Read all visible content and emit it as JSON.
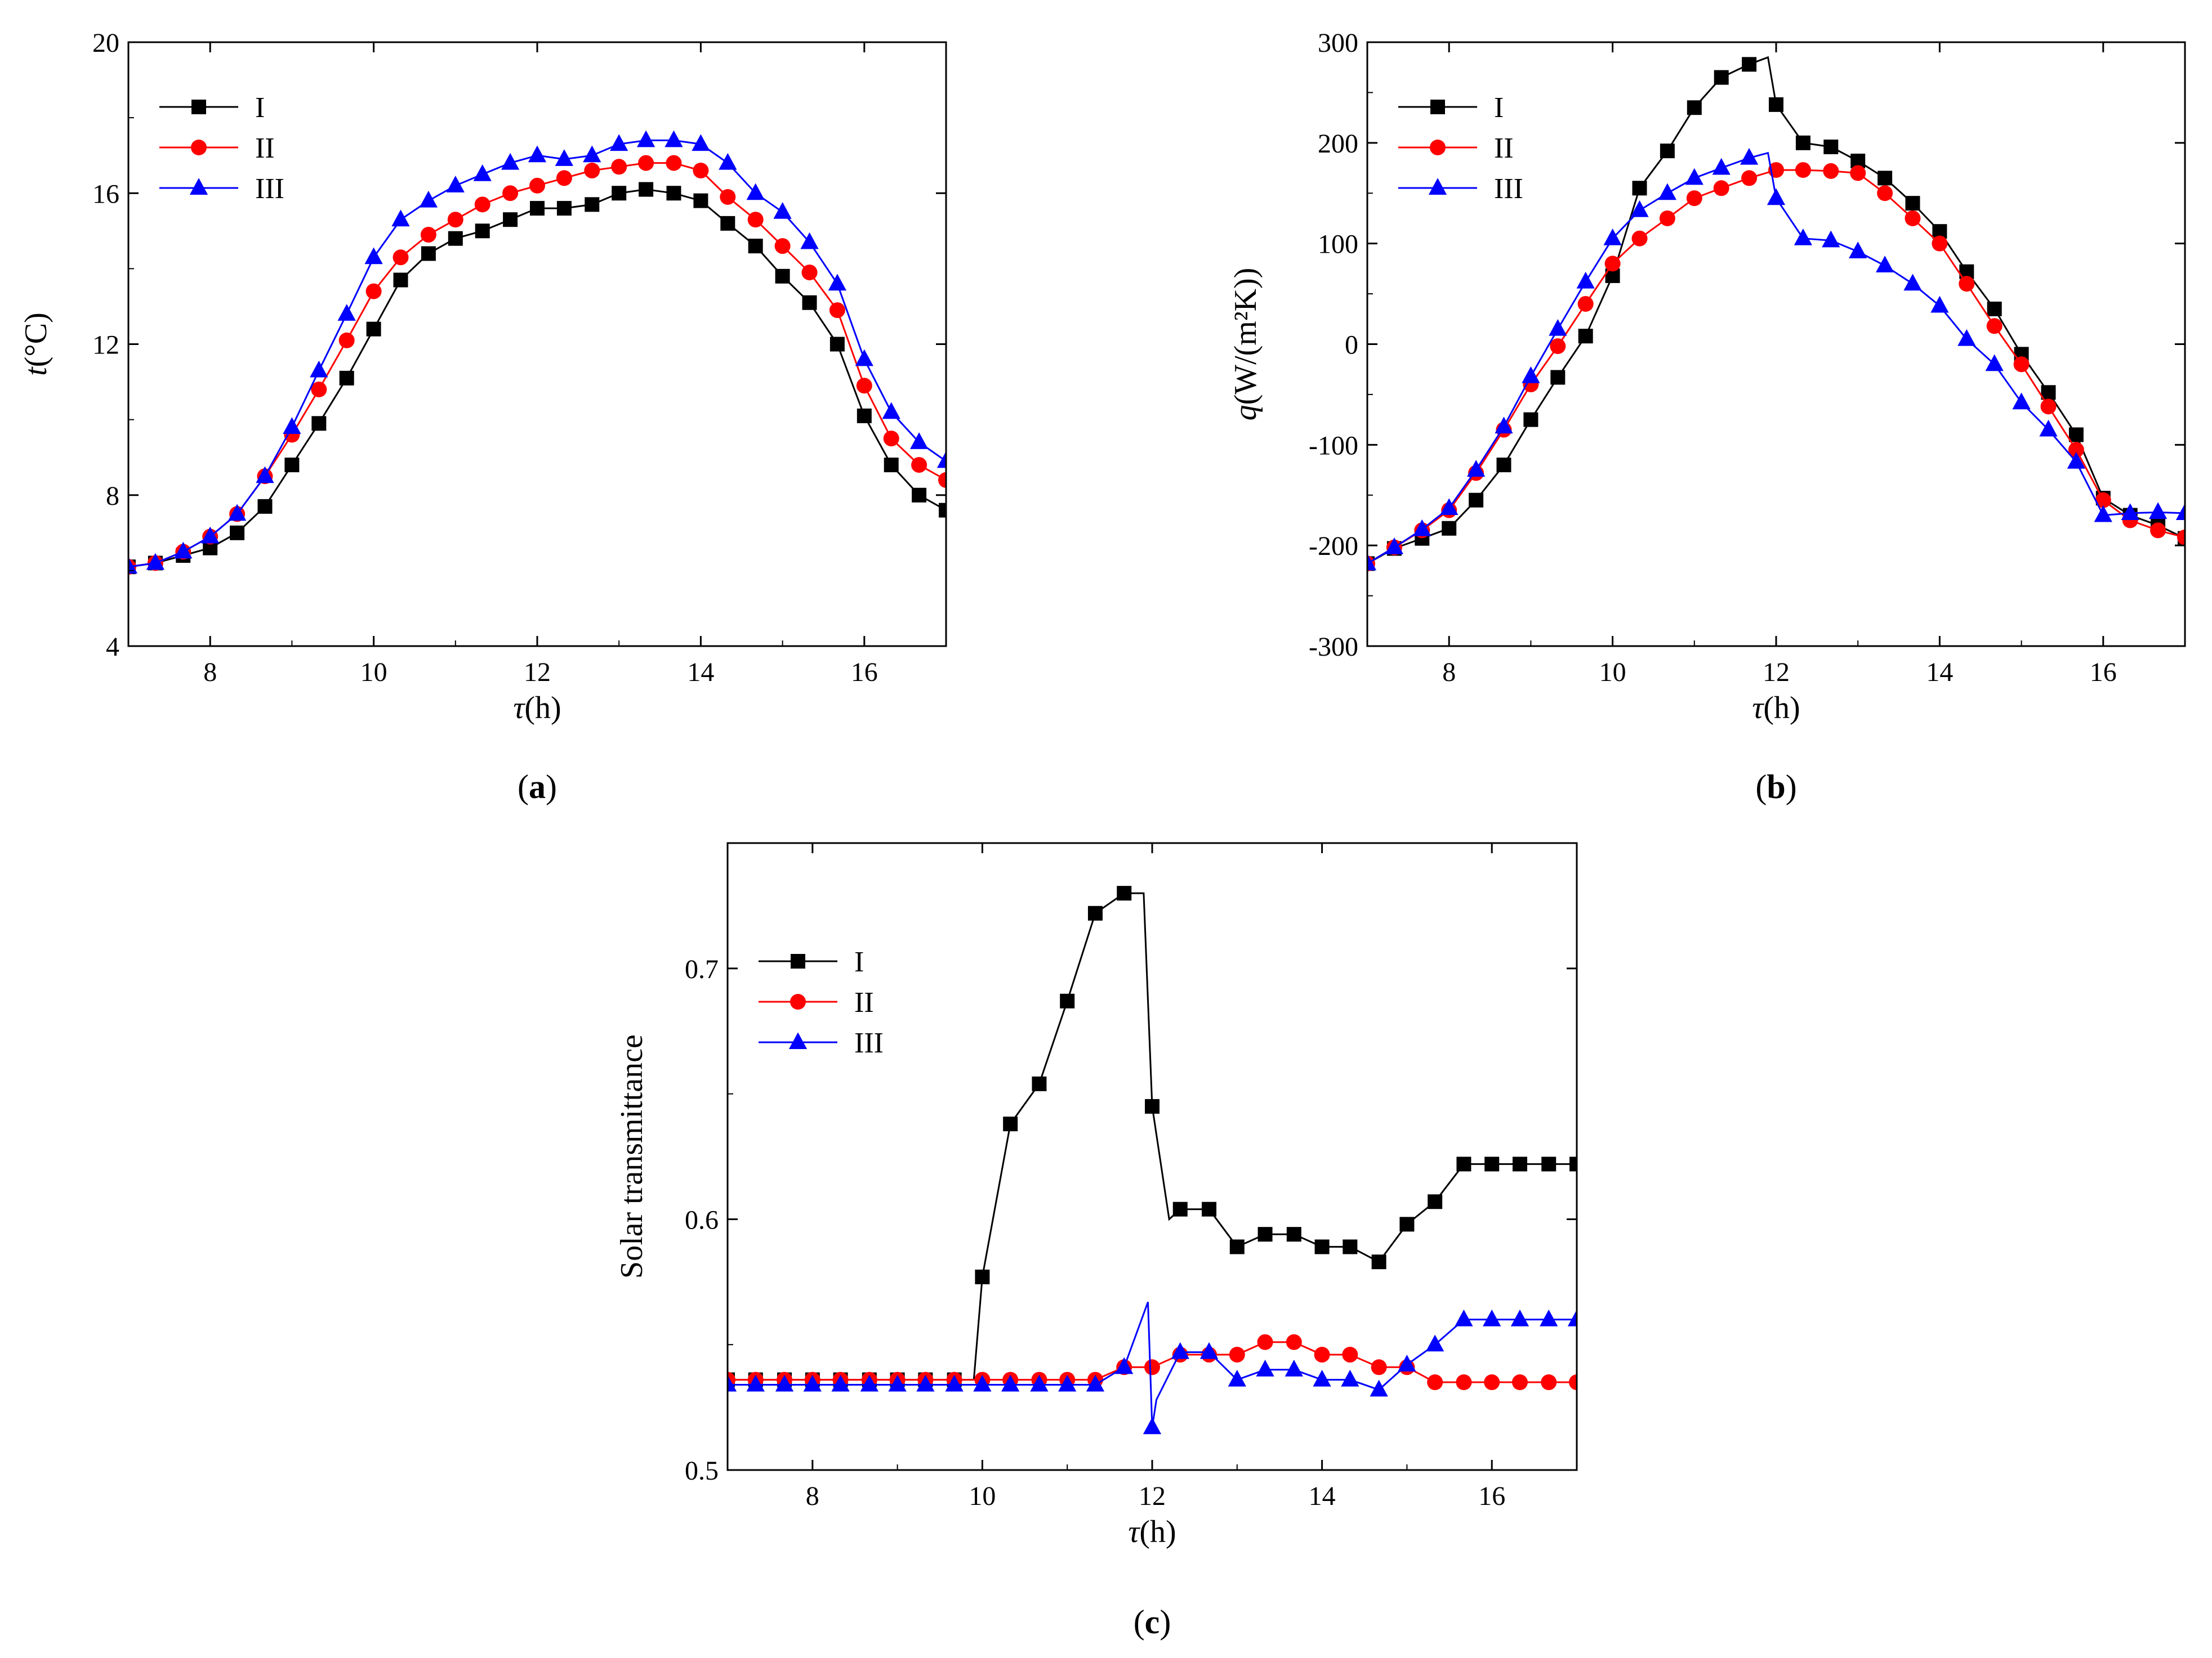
{
  "colors": {
    "I": "#000000",
    "II": "#ff0000",
    "III": "#0000ff"
  },
  "chart_data": [
    {
      "type": "line",
      "caption_letter": "a",
      "title": "",
      "xlabel_sym": "τ",
      "xlabel_unit": "(h)",
      "ylabel_sym": "t",
      "ylabel_unit": "(°C)",
      "xlim": [
        7,
        17
      ],
      "ylim": [
        4,
        20
      ],
      "xticks": [
        8,
        10,
        12,
        14,
        16
      ],
      "yticks": [
        4,
        8,
        12,
        16,
        20
      ],
      "legend": {
        "position": "top-left",
        "entries": [
          "I",
          "II",
          "III"
        ]
      },
      "series": [
        {
          "name": "I",
          "marker": "square",
          "x": [
            7,
            7.33,
            7.67,
            8,
            8.33,
            8.67,
            9,
            9.33,
            9.67,
            10,
            10.33,
            10.67,
            11,
            11.33,
            11.67,
            12,
            12.33,
            12.67,
            13,
            13.33,
            13.67,
            14,
            14.33,
            14.67,
            15,
            15.33,
            15.67,
            16,
            16.33,
            16.67,
            17
          ],
          "y": [
            6.1,
            6.2,
            6.4,
            6.6,
            7.0,
            7.7,
            8.8,
            9.9,
            11.1,
            12.4,
            13.7,
            14.4,
            14.8,
            15.0,
            15.3,
            15.6,
            15.6,
            15.7,
            16.0,
            16.1,
            16.0,
            15.8,
            15.2,
            14.6,
            13.8,
            13.1,
            12.0,
            10.1,
            8.8,
            8.0,
            7.6
          ]
        },
        {
          "name": "II",
          "marker": "circle",
          "x": [
            7,
            7.33,
            7.67,
            8,
            8.33,
            8.67,
            9,
            9.33,
            9.67,
            10,
            10.33,
            10.67,
            11,
            11.33,
            11.67,
            12,
            12.33,
            12.67,
            13,
            13.33,
            13.67,
            14,
            14.33,
            14.67,
            15,
            15.33,
            15.67,
            16,
            16.33,
            16.67,
            17
          ],
          "y": [
            6.1,
            6.2,
            6.5,
            6.9,
            7.5,
            8.5,
            9.6,
            10.8,
            12.1,
            13.4,
            14.3,
            14.9,
            15.3,
            15.7,
            16.0,
            16.2,
            16.4,
            16.6,
            16.7,
            16.8,
            16.8,
            16.6,
            15.9,
            15.3,
            14.6,
            13.9,
            12.9,
            10.9,
            9.5,
            8.8,
            8.4
          ]
        },
        {
          "name": "III",
          "marker": "triangle",
          "x": [
            7,
            7.33,
            7.67,
            8,
            8.33,
            8.67,
            9,
            9.33,
            9.67,
            10,
            10.33,
            10.67,
            11,
            11.33,
            11.67,
            12,
            12.33,
            12.67,
            13,
            13.33,
            13.67,
            14,
            14.33,
            14.67,
            15,
            15.33,
            15.67,
            16,
            16.33,
            16.67,
            17
          ],
          "y": [
            6.1,
            6.2,
            6.5,
            6.9,
            7.5,
            8.5,
            9.8,
            11.3,
            12.8,
            14.3,
            15.3,
            15.8,
            16.2,
            16.5,
            16.8,
            17.0,
            16.9,
            17.0,
            17.3,
            17.4,
            17.4,
            17.3,
            16.8,
            16.0,
            15.5,
            14.7,
            13.6,
            11.6,
            10.2,
            9.4,
            8.9
          ]
        }
      ]
    },
    {
      "type": "line",
      "caption_letter": "b",
      "title": "",
      "xlabel_sym": "τ",
      "xlabel_unit": "(h)",
      "ylabel_sym": "q",
      "ylabel_unit": "(W/(m²K))",
      "xlim": [
        7,
        17
      ],
      "ylim": [
        -300,
        300
      ],
      "xticks": [
        8,
        10,
        12,
        14,
        16
      ],
      "yticks": [
        -300,
        -200,
        -100,
        0,
        100,
        200,
        300
      ],
      "legend": {
        "position": "top-left",
        "entries": [
          "I",
          "II",
          "III"
        ]
      },
      "series": [
        {
          "name": "I",
          "marker": "square",
          "x": [
            7,
            7.33,
            7.67,
            8,
            8.33,
            8.67,
            9,
            9.33,
            9.67,
            10,
            10.33,
            10.67,
            11,
            11.33,
            11.67,
            11.9,
            12,
            12.33,
            12.67,
            13,
            13.33,
            13.67,
            14,
            14.33,
            14.67,
            15,
            15.33,
            15.67,
            16,
            16.33,
            16.67,
            17
          ],
          "y": [
            -218,
            -203,
            -193,
            -183,
            -155,
            -120,
            -75,
            -33,
            8,
            68,
            155,
            192,
            235,
            265,
            278,
            285,
            238,
            200,
            196,
            182,
            165,
            140,
            112,
            72,
            35,
            -10,
            -48,
            -90,
            -153,
            -170,
            -180,
            -193
          ],
          "markers_skip": [
            15
          ]
        },
        {
          "name": "II",
          "marker": "circle",
          "x": [
            7,
            7.33,
            7.67,
            8,
            8.33,
            8.67,
            9,
            9.33,
            9.67,
            10,
            10.33,
            10.67,
            11,
            11.33,
            11.67,
            12,
            12.33,
            12.67,
            13,
            13.33,
            13.67,
            14,
            14.33,
            14.67,
            15,
            15.33,
            15.67,
            16,
            16.33,
            16.67,
            17
          ],
          "y": [
            -218,
            -202,
            -185,
            -165,
            -128,
            -85,
            -40,
            -2,
            40,
            80,
            105,
            125,
            145,
            155,
            165,
            173,
            173,
            172,
            170,
            150,
            125,
            100,
            60,
            18,
            -20,
            -62,
            -105,
            -155,
            -175,
            -185,
            -192
          ]
        },
        {
          "name": "III",
          "marker": "triangle",
          "x": [
            7,
            7.33,
            7.67,
            8,
            8.33,
            8.67,
            9,
            9.33,
            9.67,
            10,
            10.33,
            10.67,
            11,
            11.33,
            11.67,
            11.9,
            12,
            12.33,
            12.67,
            13,
            13.33,
            13.67,
            14,
            14.33,
            14.67,
            15,
            15.33,
            15.67,
            16,
            16.33,
            16.67,
            17
          ],
          "y": [
            -218,
            -202,
            -184,
            -163,
            -125,
            -82,
            -32,
            15,
            62,
            105,
            133,
            150,
            165,
            175,
            185,
            190,
            145,
            105,
            103,
            92,
            78,
            60,
            38,
            5,
            -20,
            -58,
            -85,
            -117,
            -170,
            -168,
            -167,
            -168
          ],
          "markers_skip": [
            15
          ]
        }
      ]
    },
    {
      "type": "line",
      "caption_letter": "c",
      "title": "",
      "xlabel_sym": "τ",
      "xlabel_unit": "(h)",
      "ylabel_sym": "",
      "ylabel_unit": "Solar transmittance",
      "xlim": [
        7,
        17
      ],
      "ylim": [
        0.5,
        0.75
      ],
      "xticks": [
        8,
        10,
        12,
        14,
        16
      ],
      "yticks": [
        0.5,
        0.6,
        0.7
      ],
      "legend": {
        "position": "top-left",
        "entries": [
          "I",
          "II",
          "III"
        ]
      },
      "series": [
        {
          "name": "I",
          "marker": "square",
          "x": [
            7,
            7.33,
            7.67,
            8,
            8.33,
            8.67,
            9,
            9.33,
            9.67,
            9.9,
            10,
            10.33,
            10.67,
            11,
            11.33,
            11.67,
            11.9,
            12,
            12.2,
            12.33,
            12.67,
            13,
            13.33,
            13.67,
            14,
            14.33,
            14.67,
            15,
            15.33,
            15.67,
            16,
            16.33,
            16.67,
            17
          ],
          "y": [
            0.536,
            0.536,
            0.536,
            0.536,
            0.536,
            0.536,
            0.536,
            0.536,
            0.536,
            0.536,
            0.577,
            0.638,
            0.654,
            0.687,
            0.722,
            0.73,
            0.73,
            0.645,
            0.6,
            0.604,
            0.604,
            0.589,
            0.594,
            0.594,
            0.589,
            0.589,
            0.583,
            0.598,
            0.607,
            0.622,
            0.622,
            0.622,
            0.622,
            0.622
          ],
          "markers_skip": [
            9,
            16,
            18
          ]
        },
        {
          "name": "II",
          "marker": "circle",
          "x": [
            7,
            7.33,
            7.67,
            8,
            8.33,
            8.67,
            9,
            9.33,
            9.67,
            10,
            10.33,
            10.67,
            11,
            11.33,
            11.67,
            12,
            12.33,
            12.67,
            13,
            13.33,
            13.67,
            14,
            14.33,
            14.67,
            15,
            15.33,
            15.67,
            16,
            16.33,
            16.67,
            17
          ],
          "y": [
            0.536,
            0.536,
            0.536,
            0.536,
            0.536,
            0.536,
            0.536,
            0.536,
            0.536,
            0.536,
            0.536,
            0.536,
            0.536,
            0.536,
            0.541,
            0.541,
            0.546,
            0.546,
            0.546,
            0.551,
            0.551,
            0.546,
            0.546,
            0.541,
            0.541,
            0.535,
            0.535,
            0.535,
            0.535,
            0.535,
            0.535
          ]
        },
        {
          "name": "III",
          "marker": "triangle",
          "x": [
            7,
            7.33,
            7.67,
            8,
            8.33,
            8.67,
            9,
            9.33,
            9.67,
            10,
            10.33,
            10.67,
            11,
            11.33,
            11.67,
            11.95,
            12,
            12.05,
            12.33,
            12.67,
            13,
            13.33,
            13.67,
            14,
            14.33,
            14.67,
            15,
            15.33,
            15.67,
            16,
            16.33,
            16.67,
            17
          ],
          "y": [
            0.534,
            0.534,
            0.534,
            0.534,
            0.534,
            0.534,
            0.534,
            0.534,
            0.534,
            0.534,
            0.534,
            0.534,
            0.534,
            0.534,
            0.541,
            0.567,
            0.517,
            0.528,
            0.547,
            0.547,
            0.536,
            0.54,
            0.54,
            0.536,
            0.536,
            0.532,
            0.542,
            0.55,
            0.56,
            0.56,
            0.56,
            0.56,
            0.56
          ],
          "markers_skip": [
            15,
            17
          ]
        }
      ]
    }
  ]
}
